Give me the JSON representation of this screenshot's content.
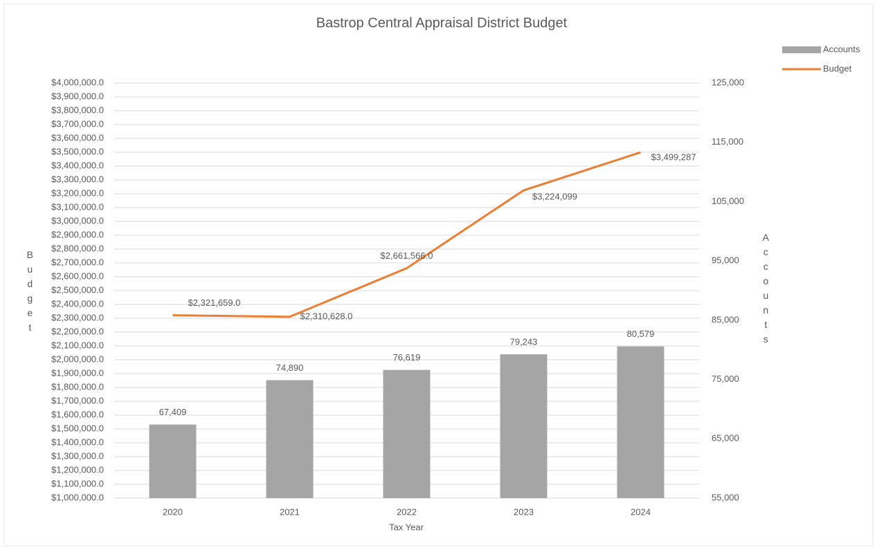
{
  "chart_data": {
    "type": "combo",
    "title": "Bastrop Central Appraisal District Budget",
    "x_label": "Tax Year",
    "y_label": "Budget",
    "y2_label": "Accounts",
    "categories": [
      "2020",
      "2021",
      "2022",
      "2023",
      "2024"
    ],
    "series": [
      {
        "name": "Accounts",
        "type": "bar",
        "axis": "y2",
        "color": "#a5a5a5",
        "values": [
          67409,
          74890,
          76619,
          79243,
          80579
        ],
        "value_labels": [
          "67,409",
          "74,890",
          "76,619",
          "79,243",
          "80,579"
        ]
      },
      {
        "name": "Budget",
        "type": "line",
        "color": "#ed7d31",
        "values": [
          2321659,
          2310628,
          2661566,
          3224099,
          3499287
        ],
        "value_labels": [
          "$2,321,659.0",
          "$2,310,628.0",
          "$2,661,566.0",
          "$3,224,099",
          "$3,499,287"
        ]
      }
    ],
    "ylim": [
      1000000,
      4000000
    ],
    "yticks": [
      {
        "value": 1000000,
        "label": "$1,000,000.0"
      },
      {
        "value": 1100000,
        "label": "$1,100,000.0"
      },
      {
        "value": 1200000,
        "label": "$1,200,000.0"
      },
      {
        "value": 1300000,
        "label": "$1,300,000.0"
      },
      {
        "value": 1400000,
        "label": "$1,400,000.0"
      },
      {
        "value": 1500000,
        "label": "$1,500,000.0"
      },
      {
        "value": 1600000,
        "label": "$1,600,000.0"
      },
      {
        "value": 1700000,
        "label": "$1,700,000.0"
      },
      {
        "value": 1800000,
        "label": "$1,800,000.0"
      },
      {
        "value": 1900000,
        "label": "$1,900,000.0"
      },
      {
        "value": 2000000,
        "label": "$2,000,000.0"
      },
      {
        "value": 2100000,
        "label": "$2,100,000.0"
      },
      {
        "value": 2200000,
        "label": "$2,200,000.0"
      },
      {
        "value": 2300000,
        "label": "$2,300,000.0"
      },
      {
        "value": 2400000,
        "label": "$2,400,000.0"
      },
      {
        "value": 2500000,
        "label": "$2,500,000.0"
      },
      {
        "value": 2600000,
        "label": "$2,600,000.0"
      },
      {
        "value": 2700000,
        "label": "$2,700,000.0"
      },
      {
        "value": 2800000,
        "label": "$2,800,000.0"
      },
      {
        "value": 2900000,
        "label": "$2,900,000.0"
      },
      {
        "value": 3000000,
        "label": "$3,000,000.0"
      },
      {
        "value": 3100000,
        "label": "$3,100,000.0"
      },
      {
        "value": 3200000,
        "label": "$3,200,000.0"
      },
      {
        "value": 3300000,
        "label": "$3,300,000.0"
      },
      {
        "value": 3400000,
        "label": "$3,400,000.0"
      },
      {
        "value": 3500000,
        "label": "$3,500,000.0"
      },
      {
        "value": 3600000,
        "label": "$3,600,000.0"
      },
      {
        "value": 3700000,
        "label": "$3,700,000.0"
      },
      {
        "value": 3800000,
        "label": "$3,800,000.0"
      },
      {
        "value": 3900000,
        "label": "$3,900,000.0"
      },
      {
        "value": 4000000,
        "label": "$4,000,000.0"
      }
    ],
    "y2lim": [
      55000,
      125000
    ],
    "y2ticks": [
      {
        "value": 55000,
        "label": "55,000"
      },
      {
        "value": 65000,
        "label": "65,000"
      },
      {
        "value": 75000,
        "label": "75,000"
      },
      {
        "value": 85000,
        "label": "85,000"
      },
      {
        "value": 95000,
        "label": "95,000"
      },
      {
        "value": 105000,
        "label": "105,000"
      },
      {
        "value": 115000,
        "label": "115,000"
      },
      {
        "value": 125000,
        "label": "125,000"
      }
    ],
    "grid": true,
    "legend": "top-right"
  }
}
